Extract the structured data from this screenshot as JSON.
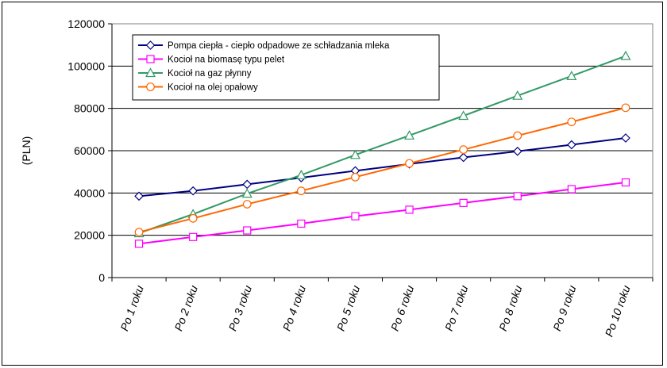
{
  "chart_data": {
    "type": "line",
    "title": "",
    "xlabel": "",
    "ylabel": "(PLN)",
    "ylim": [
      0,
      120000
    ],
    "yticks": [
      "0",
      "20000",
      "40000",
      "60000",
      "80000",
      "100000",
      "120000"
    ],
    "grid": true,
    "legend_position": "top-left",
    "categories": [
      "Po 1 roku",
      "Po 2 roku",
      "Po 3 roku",
      "Po 4 roku",
      "Po 5 roku",
      "Po 6 roku",
      "Po 7 roku",
      "Po 8 roku",
      "Po 9 roku",
      "Po 10 roku"
    ],
    "series": [
      {
        "name": "Pompa ciepła - ciepło odpadowe ze schładzania mleka",
        "color": "#000080",
        "marker": "diamond",
        "values": [
          38500,
          41000,
          44100,
          47200,
          50500,
          53700,
          56800,
          59700,
          62800,
          66000
        ]
      },
      {
        "name": "Kocioł na biomasę typu pelet",
        "color": "#ff00ff",
        "marker": "square",
        "values": [
          16000,
          19200,
          22300,
          25500,
          29000,
          32100,
          35300,
          38500,
          41800,
          45000
        ]
      },
      {
        "name": "Kocioł na gaz płynny",
        "color": "#339966",
        "marker": "triangle",
        "values": [
          21000,
          30000,
          39700,
          48500,
          58000,
          67200,
          76500,
          86000,
          95300,
          104800
        ]
      },
      {
        "name": "Kocioł na olej opałowy",
        "color": "#ff6600",
        "marker": "circle",
        "values": [
          21500,
          28000,
          34700,
          41000,
          47500,
          54000,
          60500,
          67100,
          73600,
          80300
        ]
      }
    ]
  }
}
